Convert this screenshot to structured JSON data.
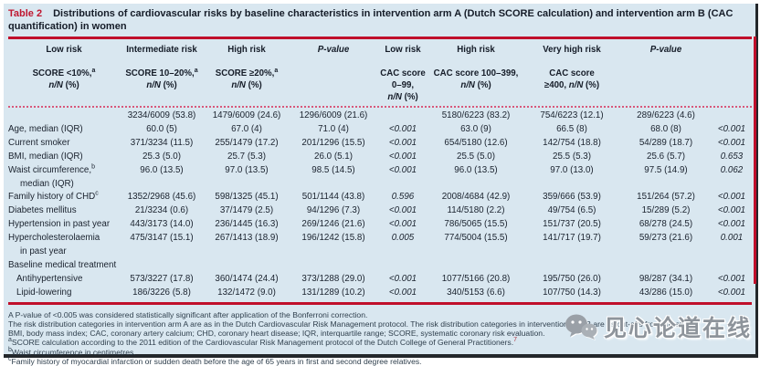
{
  "colors": {
    "accent_red": "#c00f2b",
    "panel_bg": "#d9e7f0",
    "text_dark": "#151c28",
    "watermark_gray": "#8e949b"
  },
  "title": {
    "tag": "Table 2",
    "text": "Distributions of cardiovascular risks by baseline characteristics in intervention arm A (Dutch SCORE calculation) and intervention arm B (CAC quantification) in women"
  },
  "table": {
    "columns": [
      {
        "name": "Low risk",
        "pvalue": false,
        "sub": [
          {
            "text": "SCORE <10%,",
            "sup": "a"
          },
          {
            "text": "n/N (%)",
            "sup": ""
          }
        ]
      },
      {
        "name": "Intermediate risk",
        "pvalue": false,
        "sub": [
          {
            "text": "SCORE 10–20%,",
            "sup": "a"
          },
          {
            "text": "n/N (%)",
            "sup": ""
          }
        ]
      },
      {
        "name": "High risk",
        "pvalue": false,
        "sub": [
          {
            "text": "SCORE ≥20%,",
            "sup": "a"
          },
          {
            "text": "n/N (%)",
            "sup": ""
          }
        ]
      },
      {
        "name": "P-value",
        "pvalue": true,
        "sub": []
      },
      {
        "name": "Low risk",
        "pvalue": false,
        "sub": [
          {
            "text": "CAC score 0–99,",
            "sup": ""
          },
          {
            "text": "n/N (%)",
            "sup": ""
          }
        ]
      },
      {
        "name": "High risk",
        "pvalue": false,
        "sub": [
          {
            "text": "CAC score 100–399,",
            "sup": ""
          },
          {
            "text": "n/N (%)",
            "sup": ""
          }
        ]
      },
      {
        "name": "Very high risk",
        "pvalue": false,
        "sub": [
          {
            "text": "CAC score",
            "sup": ""
          },
          {
            "text": "≥400, n/N (%)",
            "sup": ""
          }
        ]
      },
      {
        "name": "P-value",
        "pvalue": true,
        "sub": []
      }
    ],
    "rows": [
      {
        "label": "",
        "sup": "",
        "label2": "",
        "indent": false,
        "cells": [
          "3234/6009 (53.8)",
          "1479/6009 (24.6)",
          "1296/6009 (21.6)",
          "",
          "5180/6223 (83.2)",
          "754/6223 (12.1)",
          "289/6223 (4.6)",
          ""
        ]
      },
      {
        "label": "Age, median (IQR)",
        "sup": "",
        "label2": "",
        "indent": false,
        "cells": [
          "60.0 (5)",
          "67.0 (4)",
          "71.0 (4)",
          "<0.001",
          "63.0 (9)",
          "66.5 (8)",
          "68.0 (8)",
          "<0.001"
        ]
      },
      {
        "label": "Current smoker",
        "sup": "",
        "label2": "",
        "indent": false,
        "cells": [
          "371/3234 (11.5)",
          "255/1479 (17.2)",
          "201/1296 (15.5)",
          "<0.001",
          "654/5180 (12.6)",
          "142/754 (18.8)",
          "54/289 (18.7)",
          "<0.001"
        ]
      },
      {
        "label": "BMI, median (IQR)",
        "sup": "",
        "label2": "",
        "indent": false,
        "cells": [
          "25.3 (5.0)",
          "25.7 (5.3)",
          "26.0 (5.1)",
          "<0.001",
          "25.5 (5.0)",
          "25.5 (5.3)",
          "25.6 (5.7)",
          "0.653"
        ]
      },
      {
        "label": "Waist circumference,",
        "sup": "b",
        "label2": "median (IQR)",
        "indent": false,
        "cells": [
          "96.0 (13.5)",
          "97.0 (13.5)",
          "98.5 (14.5)",
          "<0.001",
          "96.0 (13.5)",
          "97.0 (13.0)",
          "97.5 (14.9)",
          "0.062"
        ]
      },
      {
        "label": "Family history of CHD",
        "sup": "c",
        "label2": "",
        "indent": false,
        "cells": [
          "1352/2968 (45.6)",
          "598/1325 (45.1)",
          "501/1144 (43.8)",
          "0.596",
          "2008/4684 (42.9)",
          "359/666 (53.9)",
          "151/264 (57.2)",
          "<0.001"
        ]
      },
      {
        "label": "Diabetes mellitus",
        "sup": "",
        "label2": "",
        "indent": false,
        "cells": [
          "21/3234 (0.6)",
          "37/1479 (2.5)",
          "94/1296 (7.3)",
          "<0.001",
          "114/5180 (2.2)",
          "49/754 (6.5)",
          "15/289 (5.2)",
          "<0.001"
        ]
      },
      {
        "label": "Hypertension in past year",
        "sup": "",
        "label2": "",
        "indent": false,
        "cells": [
          "443/3173 (14.0)",
          "236/1445 (16.3)",
          "269/1246 (21.6)",
          "<0.001",
          "786/5065 (15.5)",
          "151/737 (20.5)",
          "68/278 (24.5)",
          "<0.001"
        ]
      },
      {
        "label": "Hypercholesterolaemia",
        "sup": "",
        "label2": "in past year",
        "indent": false,
        "cells": [
          "475/3147 (15.1)",
          "267/1413 (18.9)",
          "196/1242 (15.8)",
          "0.005",
          "774/5004 (15.5)",
          "141/717 (19.7)",
          "59/273 (21.6)",
          "0.001"
        ]
      },
      {
        "label": "Baseline medical treatment",
        "sup": "",
        "label2": "",
        "indent": false,
        "cells": [
          "",
          "",
          "",
          "",
          "",
          "",
          "",
          ""
        ]
      },
      {
        "label": "Antihypertensive",
        "sup": "",
        "label2": "",
        "indent": true,
        "cells": [
          "573/3227 (17.8)",
          "360/1474 (24.4)",
          "373/1288 (29.0)",
          "<0.001",
          "1077/5166 (20.8)",
          "195/750 (26.0)",
          "98/287 (34.1)",
          "<0.001"
        ]
      },
      {
        "label": "Lipid-lowering",
        "sup": "",
        "label2": "",
        "indent": true,
        "cells": [
          "186/3226 (5.8)",
          "132/1472 (9.0)",
          "131/1289 (10.2)",
          "<0.001",
          "340/5153 (6.6)",
          "107/750 (14.3)",
          "43/286 (15.0)",
          "<0.001"
        ]
      }
    ]
  },
  "footnotes": [
    {
      "sup": "",
      "text": "A P-value of <0.005 was considered statistically significant after application of the Bonferroni correction.",
      "ref": ""
    },
    {
      "sup": "",
      "text": "The risk distribution categories in intervention arm A are as in the Dutch Cardiovascular Risk Management protocol. The risk distribution categories in intervention arm B are as cut-offs from literature.",
      "ref": ""
    },
    {
      "sup": "",
      "text": "BMI, body mass index; CAC, coronary artery calcium; CHD, coronary heart disease; IQR, interquartile range; SCORE, systematic coronary risk evaluation.",
      "ref": ""
    },
    {
      "sup": "a",
      "text": "SCORE calculation according to the 2011 edition of the Cardiovascular Risk Management protocol of the Dutch College of General Practitioners.",
      "ref": "7"
    },
    {
      "sup": "b",
      "text": "Waist circumference in centimetres.",
      "ref": ""
    },
    {
      "sup": "c",
      "text": "Family history of myocardial infarction or sudden death before the age of 65 years in first and second degree relatives.",
      "ref": ""
    }
  ],
  "watermark": {
    "text": "见心论道在线",
    "icon": "wechat-icon"
  }
}
